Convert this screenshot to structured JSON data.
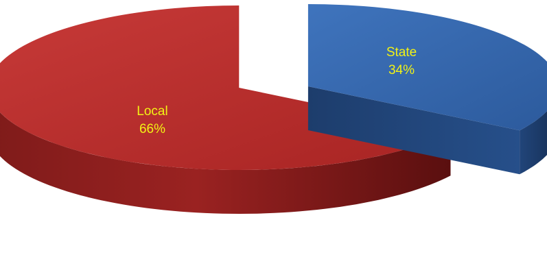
{
  "chart_data": {
    "type": "pie",
    "style": "3d-exploded",
    "slices": [
      {
        "name": "Local",
        "value": 66,
        "label_name": "Local",
        "label_value": "66%",
        "color": "#b52a2a"
      },
      {
        "name": "State",
        "value": 34,
        "label_name": "State",
        "label_value": "34%",
        "color": "#2f62a8"
      }
    ]
  }
}
